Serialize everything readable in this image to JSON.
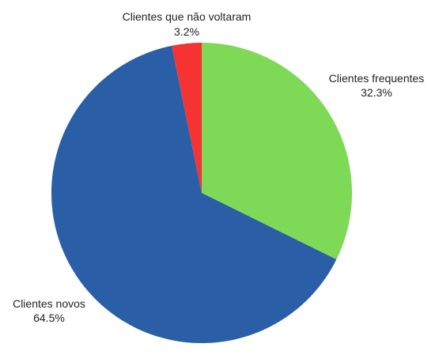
{
  "chart_data": {
    "type": "pie",
    "title": "",
    "slices": [
      {
        "label": "Clientes frequentes",
        "value": 32.3,
        "value_label": "32.3%",
        "color": "#7ed957"
      },
      {
        "label": "Clientes novos",
        "value": 64.5,
        "value_label": "64.5%",
        "color": "#2a5fa8"
      },
      {
        "label": "Clientes que não voltaram",
        "value": 3.2,
        "value_label": "3.2%",
        "color": "#f63333"
      }
    ],
    "start_angle": "12 o'clock",
    "direction": "clockwise",
    "legend": "none"
  }
}
